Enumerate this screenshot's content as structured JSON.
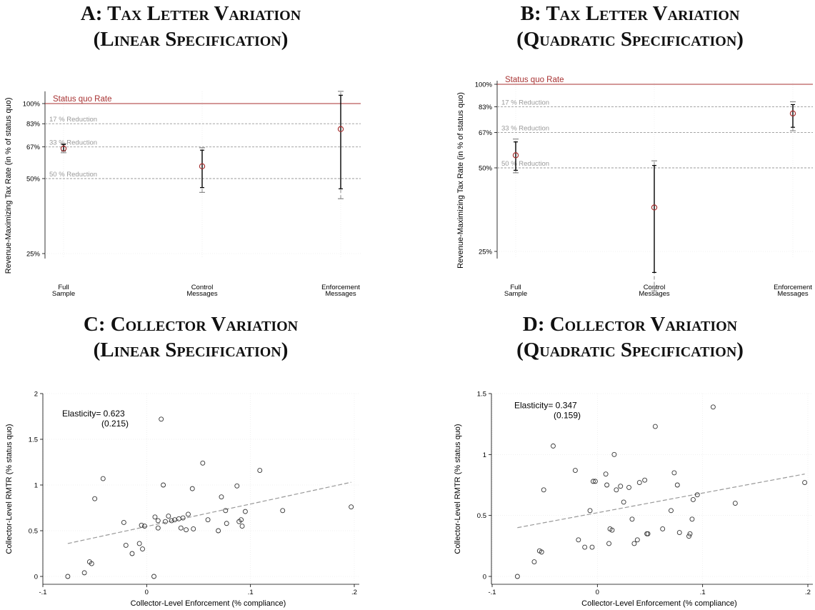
{
  "panels": {
    "A": {
      "title_line1": "A: Tax Letter Variation",
      "title_line2": "(Linear Specification)"
    },
    "B": {
      "title_line1": "B: Tax Letter Variation",
      "title_line2": "(Quadratic Specification)"
    },
    "C": {
      "title_line1": "C: Collector Variation",
      "title_line2": "(Linear Specification)"
    },
    "D": {
      "title_line1": "D: Collector Variation",
      "title_line2": "(Quadratic Specification)"
    }
  },
  "colors": {
    "status_quo": "#a83232",
    "reference": "#999999",
    "point": "#a83232",
    "scatter": "#333333",
    "fit": "#999999"
  },
  "chart_data": [
    {
      "id": "A",
      "type": "scatter",
      "title": "A: Tax Letter Variation (Linear Specification)",
      "ylabel": "Revenue-Maximizing Tax Rate (in % of status quo)",
      "categories": [
        "Full Sample",
        "Control Messages",
        "Enforcement Messages"
      ],
      "category_lines": [
        [
          "Full",
          "Sample"
        ],
        [
          "Control",
          "Messages"
        ],
        [
          "Enforcement",
          "Messages"
        ]
      ],
      "yticks": [
        25,
        50,
        67,
        83,
        100
      ],
      "ytick_labels": [
        "25%",
        "50%",
        "67%",
        "83%",
        "100%"
      ],
      "ylim": [
        22,
        112
      ],
      "estimates": [
        66,
        56,
        79
      ],
      "ci95": [
        [
          63.5,
          69
        ],
        [
          44,
          66.5
        ],
        [
          41.5,
          112
        ]
      ],
      "ci90": [
        [
          64.5,
          68.5
        ],
        [
          46,
          65
        ],
        [
          45.5,
          108
        ]
      ],
      "status_quo": {
        "value": 100,
        "label": "Status quo Rate"
      },
      "reference_lines": [
        {
          "value": 83,
          "label": "17 % Reduction"
        },
        {
          "value": 67,
          "label": "33 % Reduction"
        },
        {
          "value": 50,
          "label": "50 % Reduction"
        }
      ]
    },
    {
      "id": "B",
      "type": "scatter",
      "title": "B: Tax Letter Variation (Quadratic Specification)",
      "ylabel": "Revenue-Maximizing Tax Rate (in % of status quo)",
      "categories": [
        "Full Sample",
        "Control Messages",
        "Enforcement Messages"
      ],
      "category_lines": [
        [
          "Full",
          "Sample"
        ],
        [
          "Control",
          "Messages"
        ],
        [
          "Enforcement",
          "Messages"
        ]
      ],
      "yticks": [
        25,
        50,
        67,
        83,
        100
      ],
      "ytick_labels": [
        "25%",
        "50%",
        "67%",
        "83%",
        "100%"
      ],
      "ylim": [
        18,
        103
      ],
      "estimates": [
        55.5,
        36,
        78.5
      ],
      "ci95": [
        [
          48,
          63.5
        ],
        [
          18,
          53
        ],
        [
          68,
          86.5
        ]
      ],
      "ci90": [
        [
          49,
          62
        ],
        [
          21,
          51
        ],
        [
          70,
          84.5
        ]
      ],
      "status_quo": {
        "value": 100,
        "label": "Status quo Rate"
      },
      "reference_lines": [
        {
          "value": 83,
          "label": "17 % Reduction"
        },
        {
          "value": 67,
          "label": "33 % Reduction"
        },
        {
          "value": 50,
          "label": "50 % Reduction"
        }
      ]
    },
    {
      "id": "C",
      "type": "scatter",
      "title": "C: Collector Variation (Linear Specification)",
      "xlabel": "Collector-Level Enforcement (% compliance)",
      "ylabel": "Collector-Level RMTR (% status quo)",
      "xlim": [
        -0.1,
        0.2
      ],
      "ylim": [
        0,
        2
      ],
      "xticks": [
        -0.1,
        0,
        0.1,
        0.2
      ],
      "xtick_labels": [
        "-.1",
        "0",
        ".1",
        ".2"
      ],
      "yticks": [
        0,
        0.5,
        1,
        1.5,
        2
      ],
      "ytick_labels": [
        "0",
        "0.5",
        "1",
        "1.5",
        "2"
      ],
      "annotation": {
        "line1": "Elasticity= 0.623",
        "line2": "(0.215)"
      },
      "fit_line": {
        "x": [
          -0.076,
          0.197
        ],
        "y": [
          0.36,
          1.03
        ]
      },
      "points": {
        "x": [
          -0.076,
          -0.06,
          -0.055,
          -0.053,
          -0.05,
          -0.042,
          -0.022,
          -0.02,
          -0.014,
          -0.007,
          -0.005,
          -0.004,
          -0.002,
          0.007,
          0.008,
          0.011,
          0.011,
          0.014,
          0.016,
          0.018,
          0.021,
          0.024,
          0.027,
          0.031,
          0.033,
          0.035,
          0.038,
          0.04,
          0.044,
          0.045,
          0.054,
          0.059,
          0.069,
          0.072,
          0.076,
          0.077,
          0.087,
          0.089,
          0.091,
          0.092,
          0.095,
          0.109,
          0.131,
          0.197
        ],
        "y": [
          0.0,
          0.04,
          0.16,
          0.14,
          0.85,
          1.07,
          0.59,
          0.34,
          0.25,
          0.36,
          0.56,
          0.3,
          0.55,
          0.0,
          0.65,
          0.53,
          0.61,
          1.72,
          1.0,
          0.6,
          0.66,
          0.61,
          0.62,
          0.63,
          0.53,
          0.64,
          0.51,
          0.68,
          0.96,
          0.52,
          1.24,
          0.62,
          0.5,
          0.87,
          0.72,
          0.58,
          0.99,
          0.6,
          0.62,
          0.55,
          0.71,
          1.16,
          0.72,
          0.76
        ]
      }
    },
    {
      "id": "D",
      "type": "scatter",
      "title": "D: Collector Variation (Quadratic Specification)",
      "xlabel": "Collector-Level Enforcement (% compliance)",
      "ylabel": "Collector-Level RMTR (% status quo)",
      "xlim": [
        -0.1,
        0.2
      ],
      "ylim": [
        0,
        1.5
      ],
      "xticks": [
        -0.1,
        0,
        0.1,
        0.2
      ],
      "xtick_labels": [
        "-.1",
        "0",
        ".1",
        ".2"
      ],
      "yticks": [
        0,
        0.5,
        1,
        1.5
      ],
      "ytick_labels": [
        "0",
        "0.5",
        "1",
        "1.5"
      ],
      "annotation": {
        "line1": "Elasticity= 0.347",
        "line2": "(0.159)"
      },
      "fit_line": {
        "x": [
          -0.076,
          0.197
        ],
        "y": [
          0.4,
          0.84
        ]
      },
      "points": {
        "x": [
          -0.076,
          -0.06,
          -0.055,
          -0.053,
          -0.051,
          -0.042,
          -0.021,
          -0.018,
          -0.012,
          -0.007,
          -0.005,
          -0.004,
          -0.002,
          0.008,
          0.009,
          0.011,
          0.012,
          0.014,
          0.016,
          0.018,
          0.022,
          0.025,
          0.03,
          0.033,
          0.035,
          0.038,
          0.04,
          0.045,
          0.047,
          0.048,
          0.055,
          0.062,
          0.07,
          0.073,
          0.076,
          0.078,
          0.087,
          0.088,
          0.09,
          0.091,
          0.095,
          0.11,
          0.131,
          0.197
        ],
        "y": [
          0.0,
          0.12,
          0.21,
          0.2,
          0.71,
          1.07,
          0.87,
          0.3,
          0.24,
          0.54,
          0.24,
          0.78,
          0.78,
          0.84,
          0.75,
          0.27,
          0.39,
          0.38,
          1.0,
          0.71,
          0.74,
          0.61,
          0.73,
          0.47,
          0.27,
          0.3,
          0.77,
          0.79,
          0.35,
          0.35,
          1.23,
          0.39,
          0.54,
          0.85,
          0.75,
          0.36,
          0.33,
          0.35,
          0.47,
          0.63,
          0.67,
          1.39,
          0.6,
          0.77
        ]
      }
    }
  ]
}
